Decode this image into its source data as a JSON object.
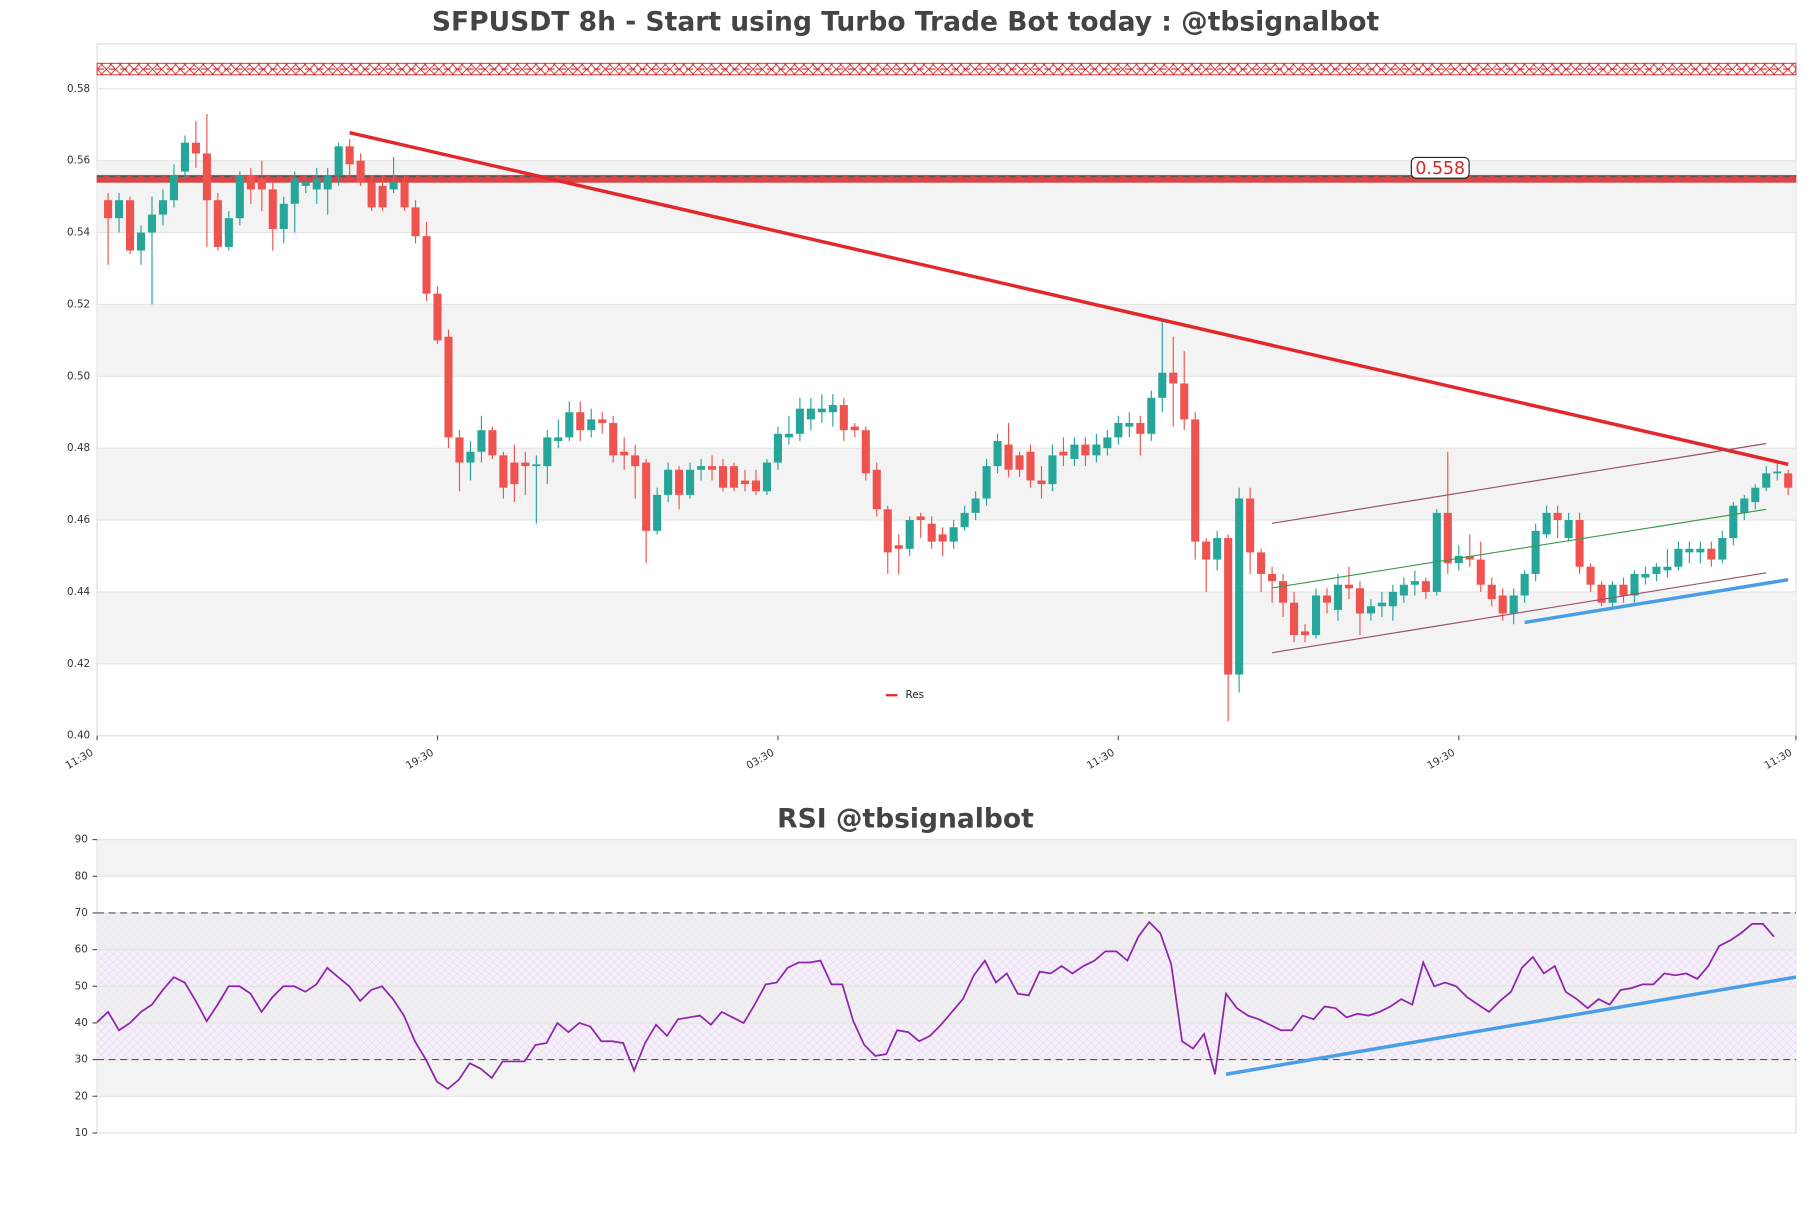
{
  "chart_data": [
    {
      "type": "candlestick",
      "title": "SFPUSDT 8h - Start using Turbo Trade Bot today : @tbsignalbot",
      "xlim": [
        -1,
        153.7
      ],
      "xticks": [
        {
          "value": -1,
          "label": "11:30"
        },
        {
          "value": 30,
          "label": "19:30"
        },
        {
          "value": 61,
          "label": "03:30"
        },
        {
          "value": 92,
          "label": "11:30"
        },
        {
          "value": 123,
          "label": "19:30"
        },
        {
          "value": 153.7,
          "label": "11:30"
        }
      ],
      "ylim": [
        0.4,
        0.5925
      ],
      "yticks": [
        {
          "value": 0.4,
          "label": "0.40"
        },
        {
          "value": 0.42,
          "label": "0.42"
        },
        {
          "value": 0.44,
          "label": "0.44"
        },
        {
          "value": 0.46,
          "label": "0.46"
        },
        {
          "value": 0.48,
          "label": "0.48"
        },
        {
          "value": 0.5,
          "label": "0.50"
        },
        {
          "value": 0.52,
          "label": "0.52"
        },
        {
          "value": 0.54,
          "label": "0.54"
        },
        {
          "value": 0.56,
          "label": "0.56"
        },
        {
          "value": 0.58,
          "label": "0.58"
        }
      ],
      "up_color": "#26a69a",
      "down_color": "#ef5350",
      "ohlc": [
        [
          0.549,
          0.551,
          0.531,
          0.544
        ],
        [
          0.544,
          0.551,
          0.54,
          0.549
        ],
        [
          0.549,
          0.55,
          0.534,
          0.535
        ],
        [
          0.535,
          0.542,
          0.531,
          0.54
        ],
        [
          0.54,
          0.55,
          0.52,
          0.545
        ],
        [
          0.545,
          0.552,
          0.542,
          0.549
        ],
        [
          0.549,
          0.559,
          0.547,
          0.556
        ],
        [
          0.557,
          0.567,
          0.555,
          0.565
        ],
        [
          0.565,
          0.571,
          0.558,
          0.562
        ],
        [
          0.562,
          0.573,
          0.536,
          0.549
        ],
        [
          0.549,
          0.551,
          0.535,
          0.536
        ],
        [
          0.536,
          0.546,
          0.535,
          0.544
        ],
        [
          0.544,
          0.557,
          0.542,
          0.556
        ],
        [
          0.556,
          0.558,
          0.548,
          0.552
        ],
        [
          0.555,
          0.56,
          0.546,
          0.552
        ],
        [
          0.552,
          0.554,
          0.535,
          0.541
        ],
        [
          0.541,
          0.55,
          0.537,
          0.548
        ],
        [
          0.548,
          0.557,
          0.54,
          0.555
        ],
        [
          0.553,
          0.556,
          0.551,
          0.554
        ],
        [
          0.552,
          0.558,
          0.548,
          0.555
        ],
        [
          0.552,
          0.558,
          0.545,
          0.556
        ],
        [
          0.556,
          0.565,
          0.553,
          0.564
        ],
        [
          0.564,
          0.566,
          0.556,
          0.559
        ],
        [
          0.56,
          0.562,
          0.553,
          0.554
        ],
        [
          0.554,
          0.556,
          0.546,
          0.547
        ],
        [
          0.553,
          0.556,
          0.546,
          0.547
        ],
        [
          0.552,
          0.561,
          0.551,
          0.554
        ],
        [
          0.554,
          0.556,
          0.546,
          0.547
        ],
        [
          0.547,
          0.549,
          0.537,
          0.539
        ],
        [
          0.539,
          0.543,
          0.521,
          0.523
        ],
        [
          0.523,
          0.525,
          0.509,
          0.51
        ],
        [
          0.511,
          0.513,
          0.48,
          0.483
        ],
        [
          0.483,
          0.485,
          0.468,
          0.476
        ],
        [
          0.476,
          0.482,
          0.471,
          0.479
        ],
        [
          0.479,
          0.489,
          0.476,
          0.485
        ],
        [
          0.485,
          0.486,
          0.477,
          0.478
        ],
        [
          0.478,
          0.479,
          0.466,
          0.469
        ],
        [
          0.476,
          0.481,
          0.465,
          0.47
        ],
        [
          0.476,
          0.479,
          0.467,
          0.475
        ],
        [
          0.475,
          0.478,
          0.459,
          0.4755
        ],
        [
          0.475,
          0.485,
          0.47,
          0.483
        ],
        [
          0.482,
          0.488,
          0.48,
          0.483
        ],
        [
          0.483,
          0.493,
          0.482,
          0.49
        ],
        [
          0.49,
          0.493,
          0.482,
          0.485
        ],
        [
          0.485,
          0.491,
          0.483,
          0.488
        ],
        [
          0.488,
          0.49,
          0.484,
          0.487
        ],
        [
          0.487,
          0.489,
          0.476,
          0.478
        ],
        [
          0.479,
          0.483,
          0.474,
          0.478
        ],
        [
          0.478,
          0.481,
          0.466,
          0.475
        ],
        [
          0.476,
          0.477,
          0.448,
          0.457
        ],
        [
          0.457,
          0.469,
          0.456,
          0.467
        ],
        [
          0.467,
          0.476,
          0.465,
          0.474
        ],
        [
          0.474,
          0.475,
          0.463,
          0.467
        ],
        [
          0.467,
          0.476,
          0.466,
          0.474
        ],
        [
          0.474,
          0.477,
          0.471,
          0.475
        ],
        [
          0.475,
          0.478,
          0.471,
          0.474
        ],
        [
          0.475,
          0.477,
          0.468,
          0.469
        ],
        [
          0.475,
          0.476,
          0.468,
          0.469
        ],
        [
          0.471,
          0.474,
          0.468,
          0.47
        ],
        [
          0.471,
          0.474,
          0.467,
          0.468
        ],
        [
          0.468,
          0.477,
          0.467,
          0.476
        ],
        [
          0.476,
          0.486,
          0.474,
          0.484
        ],
        [
          0.483,
          0.489,
          0.481,
          0.484
        ],
        [
          0.484,
          0.494,
          0.482,
          0.491
        ],
        [
          0.488,
          0.494,
          0.485,
          0.491
        ],
        [
          0.49,
          0.495,
          0.487,
          0.491
        ],
        [
          0.49,
          0.495,
          0.486,
          0.492
        ],
        [
          0.492,
          0.494,
          0.482,
          0.485
        ],
        [
          0.486,
          0.487,
          0.483,
          0.485
        ],
        [
          0.485,
          0.486,
          0.471,
          0.473
        ],
        [
          0.474,
          0.476,
          0.461,
          0.463
        ],
        [
          0.463,
          0.464,
          0.445,
          0.451
        ],
        [
          0.453,
          0.456,
          0.445,
          0.452
        ],
        [
          0.452,
          0.461,
          0.45,
          0.46
        ],
        [
          0.461,
          0.462,
          0.455,
          0.46
        ],
        [
          0.459,
          0.461,
          0.452,
          0.454
        ],
        [
          0.456,
          0.458,
          0.45,
          0.454
        ],
        [
          0.454,
          0.46,
          0.452,
          0.458
        ],
        [
          0.458,
          0.464,
          0.457,
          0.462
        ],
        [
          0.462,
          0.468,
          0.46,
          0.466
        ],
        [
          0.466,
          0.477,
          0.464,
          0.475
        ],
        [
          0.475,
          0.484,
          0.473,
          0.482
        ],
        [
          0.481,
          0.487,
          0.472,
          0.474
        ],
        [
          0.478,
          0.479,
          0.472,
          0.474
        ],
        [
          0.479,
          0.481,
          0.469,
          0.471
        ],
        [
          0.471,
          0.475,
          0.466,
          0.47
        ],
        [
          0.47,
          0.481,
          0.468,
          0.478
        ],
        [
          0.479,
          0.483,
          0.475,
          0.478
        ],
        [
          0.477,
          0.483,
          0.475,
          0.481
        ],
        [
          0.481,
          0.483,
          0.475,
          0.478
        ],
        [
          0.478,
          0.484,
          0.476,
          0.481
        ],
        [
          0.48,
          0.485,
          0.478,
          0.483
        ],
        [
          0.483,
          0.489,
          0.481,
          0.487
        ],
        [
          0.486,
          0.49,
          0.483,
          0.487
        ],
        [
          0.487,
          0.489,
          0.478,
          0.484
        ],
        [
          0.484,
          0.496,
          0.482,
          0.494
        ],
        [
          0.494,
          0.516,
          0.49,
          0.501
        ],
        [
          0.501,
          0.511,
          0.486,
          0.498
        ],
        [
          0.498,
          0.507,
          0.485,
          0.488
        ],
        [
          0.488,
          0.49,
          0.449,
          0.454
        ],
        [
          0.454,
          0.455,
          0.44,
          0.449
        ],
        [
          0.449,
          0.457,
          0.446,
          0.455
        ],
        [
          0.455,
          0.456,
          0.404,
          0.417
        ],
        [
          0.417,
          0.469,
          0.412,
          0.466
        ],
        [
          0.466,
          0.469,
          0.445,
          0.451
        ],
        [
          0.451,
          0.452,
          0.44,
          0.445
        ],
        [
          0.445,
          0.447,
          0.437,
          0.443
        ],
        [
          0.443,
          0.445,
          0.433,
          0.437
        ],
        [
          0.437,
          0.44,
          0.426,
          0.428
        ],
        [
          0.429,
          0.431,
          0.426,
          0.428
        ],
        [
          0.428,
          0.441,
          0.427,
          0.439
        ],
        [
          0.439,
          0.441,
          0.434,
          0.437
        ],
        [
          0.435,
          0.445,
          0.432,
          0.442
        ],
        [
          0.442,
          0.447,
          0.438,
          0.441
        ],
        [
          0.441,
          0.443,
          0.428,
          0.434
        ],
        [
          0.434,
          0.438,
          0.432,
          0.436
        ],
        [
          0.436,
          0.44,
          0.433,
          0.437
        ],
        [
          0.436,
          0.442,
          0.432,
          0.44
        ],
        [
          0.439,
          0.444,
          0.437,
          0.442
        ],
        [
          0.442,
          0.446,
          0.439,
          0.443
        ],
        [
          0.443,
          0.444,
          0.438,
          0.44
        ],
        [
          0.44,
          0.463,
          0.439,
          0.462
        ],
        [
          0.462,
          0.479,
          0.445,
          0.448
        ],
        [
          0.448,
          0.453,
          0.446,
          0.45
        ],
        [
          0.45,
          0.456,
          0.447,
          0.449
        ],
        [
          0.449,
          0.454,
          0.44,
          0.442
        ],
        [
          0.442,
          0.444,
          0.436,
          0.438
        ],
        [
          0.439,
          0.441,
          0.432,
          0.434
        ],
        [
          0.434,
          0.441,
          0.431,
          0.439
        ],
        [
          0.439,
          0.446,
          0.437,
          0.445
        ],
        [
          0.445,
          0.459,
          0.443,
          0.457
        ],
        [
          0.456,
          0.464,
          0.455,
          0.462
        ],
        [
          0.462,
          0.464,
          0.455,
          0.46
        ],
        [
          0.455,
          0.462,
          0.454,
          0.46
        ],
        [
          0.46,
          0.462,
          0.445,
          0.447
        ],
        [
          0.447,
          0.448,
          0.44,
          0.442
        ],
        [
          0.442,
          0.443,
          0.436,
          0.437
        ],
        [
          0.437,
          0.443,
          0.435,
          0.442
        ],
        [
          0.442,
          0.444,
          0.437,
          0.439
        ],
        [
          0.439,
          0.446,
          0.437,
          0.445
        ],
        [
          0.444,
          0.447,
          0.442,
          0.445
        ],
        [
          0.445,
          0.448,
          0.443,
          0.447
        ],
        [
          0.446,
          0.452,
          0.444,
          0.447
        ],
        [
          0.447,
          0.454,
          0.446,
          0.452
        ],
        [
          0.451,
          0.454,
          0.448,
          0.452
        ],
        [
          0.451,
          0.454,
          0.448,
          0.452
        ],
        [
          0.452,
          0.454,
          0.447,
          0.449
        ],
        [
          0.449,
          0.457,
          0.448,
          0.455
        ],
        [
          0.455,
          0.465,
          0.453,
          0.464
        ],
        [
          0.462,
          0.467,
          0.46,
          0.466
        ],
        [
          0.465,
          0.47,
          0.463,
          0.469
        ],
        [
          0.469,
          0.475,
          0.468,
          0.473
        ],
        [
          0.473,
          0.476,
          0.471,
          0.4735
        ],
        [
          0.473,
          0.474,
          0.467,
          0.469
        ]
      ],
      "resistance": 0.558,
      "resistance_color": "#d62728",
      "zones": [
        [
          0.5839,
          0.5871
        ],
        [
          0.554,
          0.5559
        ]
      ],
      "dashed_levels": [
        0.5855,
        0.5556
      ],
      "trendlines": [
        {
          "color": "#e3282c",
          "width": 3,
          "x": [
            22,
            153
          ],
          "y": [
            0.5678,
            0.4755
          ]
        },
        {
          "color": "#9b4f6a",
          "width": 1,
          "x": [
            106,
            151
          ],
          "y": [
            0.4591,
            0.4813
          ]
        },
        {
          "color": "#3a9a4a",
          "width": 1,
          "x": [
            106,
            151
          ],
          "y": [
            0.4411,
            0.463
          ]
        },
        {
          "color": "#9b4f6a",
          "width": 1,
          "x": [
            106,
            151
          ],
          "y": [
            0.4231,
            0.4453
          ]
        },
        {
          "color": "#4a9ee8",
          "width": 3,
          "x": [
            129,
            153
          ],
          "y": [
            0.4315,
            0.4434
          ]
        }
      ],
      "legend": [
        {
          "name": "Res",
          "color": "#e3282c"
        }
      ]
    },
    {
      "type": "line",
      "title": "RSI @tbsignalbot",
      "xlim": [
        0,
        155
      ],
      "ylim": [
        10,
        90
      ],
      "yticks": [
        10,
        20,
        30,
        40,
        50,
        60,
        70,
        80,
        90
      ],
      "levels": [
        30,
        70
      ],
      "color": "#8e24aa",
      "values": [
        40.2,
        43,
        38,
        40,
        43,
        45,
        49,
        52.5,
        51,
        46,
        40.5,
        45,
        50,
        50,
        48,
        43,
        47,
        50,
        50,
        48.5,
        50.5,
        55,
        52.5,
        50,
        46,
        49,
        50,
        46.5,
        42,
        35,
        30,
        24,
        22,
        24.5,
        29,
        27.5,
        25,
        29.5,
        29.5,
        29.5,
        34,
        34.5,
        40,
        37.5,
        40,
        39,
        35,
        35,
        34.5,
        27,
        34.5,
        39.5,
        36.5,
        41,
        41.5,
        42,
        39.5,
        43,
        41.5,
        40,
        45,
        50.5,
        51,
        55,
        56.5,
        56.5,
        57,
        50.5,
        50.5,
        40.5,
        34,
        31,
        31.5,
        38,
        37.5,
        35,
        36.5,
        39.5,
        43,
        46.5,
        53,
        57,
        51,
        53.5,
        48,
        47.5,
        54,
        53.5,
        55.5,
        53.5,
        55.5,
        57,
        59.5,
        59.5,
        57,
        63.5,
        67.5,
        64.5,
        56,
        35,
        33,
        37,
        26,
        48,
        44,
        42,
        41,
        39.5,
        38,
        38,
        42,
        41,
        44.5,
        44,
        41.5,
        42.5,
        42,
        43,
        44.5,
        46.5,
        45,
        56.5,
        50,
        51,
        50,
        47,
        45,
        43,
        46,
        48.5,
        55,
        58,
        53.5,
        55.5,
        48.5,
        46.5,
        44,
        46.5,
        45,
        49,
        49.5,
        50.5,
        50.5,
        53.5,
        53,
        53.5,
        52,
        55.5,
        61,
        62.5,
        64.5,
        67,
        67,
        63.5
      ],
      "trendline": {
        "color": "#4a9ee8",
        "x": [
          103,
          155
        ],
        "y": [
          26,
          52.5
        ]
      }
    }
  ]
}
